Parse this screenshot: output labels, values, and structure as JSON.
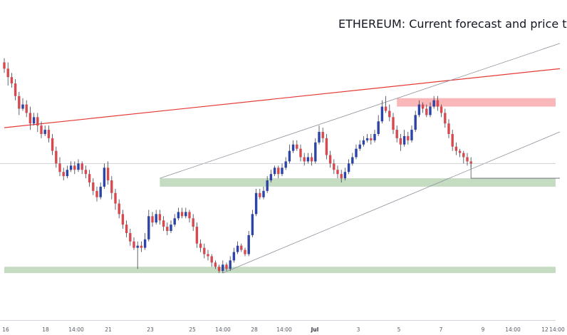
{
  "chart_data": {
    "type": "candlestick",
    "title": "ETHEREUM: Current forecast and price t",
    "x_axis": {
      "tick_labels": [
        "16",
        "18",
        "14:00",
        "21",
        "23",
        "25",
        "14:00",
        "28",
        "14:00",
        "Jul",
        "3",
        "5",
        "7",
        "9",
        "14:00",
        "12",
        "14:00"
      ],
      "bold_labels": [
        "Jul"
      ]
    },
    "y_axis": {
      "tick_labels": []
    },
    "colors": {
      "bull": "#2b44a6",
      "bear": "#d64a4f",
      "wick": "#3a3f4b",
      "support_zone": "#7fb27a",
      "support_zone_alpha": 0.45,
      "resistance_zone": "#f47c80",
      "resistance_zone_alpha": 0.55,
      "trendline": "#e53935",
      "channel": "#8a8f99",
      "current_price_line": "#c4c6cc"
    },
    "ohlc": [
      [
        108,
        105,
        110,
        103
      ],
      [
        105,
        101,
        108,
        97
      ],
      [
        101,
        98,
        103,
        96
      ],
      [
        98,
        92,
        100,
        90
      ],
      [
        92,
        86,
        94,
        83
      ],
      [
        86,
        88,
        91,
        85
      ],
      [
        88,
        84,
        90,
        82
      ],
      [
        84,
        79,
        87,
        76
      ],
      [
        79,
        82,
        84,
        78
      ],
      [
        82,
        78,
        84,
        75
      ],
      [
        78,
        74,
        80,
        72
      ],
      [
        74,
        76,
        78,
        73
      ],
      [
        76,
        72,
        78,
        70
      ],
      [
        72,
        66,
        74,
        64
      ],
      [
        66,
        60,
        68,
        58
      ],
      [
        60,
        56,
        63,
        54
      ],
      [
        56,
        54,
        58,
        52
      ],
      [
        54,
        57,
        59,
        53
      ],
      [
        57,
        59,
        61,
        56
      ],
      [
        59,
        57,
        61,
        55
      ],
      [
        57,
        60,
        62,
        56
      ],
      [
        60,
        57,
        61,
        55
      ],
      [
        57,
        55,
        59,
        53
      ],
      [
        55,
        51,
        57,
        49
      ],
      [
        51,
        47,
        53,
        45
      ],
      [
        47,
        44,
        49,
        42
      ],
      [
        44,
        49,
        51,
        43
      ],
      [
        49,
        58,
        60,
        48
      ],
      [
        58,
        52,
        61,
        50
      ],
      [
        52,
        46,
        54,
        43
      ],
      [
        46,
        41,
        48,
        38
      ],
      [
        41,
        36,
        43,
        34
      ],
      [
        36,
        31,
        38,
        29
      ],
      [
        31,
        27,
        33,
        25
      ],
      [
        27,
        23,
        29,
        21
      ],
      [
        23,
        20,
        25,
        19
      ],
      [
        20,
        21,
        23,
        10
      ],
      [
        21,
        20,
        23,
        18
      ],
      [
        20,
        24,
        27,
        19
      ],
      [
        24,
        35,
        38,
        23
      ],
      [
        35,
        32,
        37,
        30
      ],
      [
        32,
        36,
        38,
        31
      ],
      [
        36,
        33,
        38,
        31
      ],
      [
        33,
        30,
        35,
        28
      ],
      [
        30,
        28,
        32,
        26
      ],
      [
        28,
        31,
        33,
        27
      ],
      [
        31,
        34,
        36,
        30
      ],
      [
        34,
        37,
        39,
        33
      ],
      [
        37,
        35,
        39,
        34
      ],
      [
        35,
        37,
        39,
        34
      ],
      [
        37,
        34,
        38,
        32
      ],
      [
        34,
        30,
        36,
        28
      ],
      [
        30,
        22,
        32,
        20
      ],
      [
        22,
        20,
        24,
        18
      ],
      [
        20,
        17,
        22,
        15
      ],
      [
        17,
        16,
        19,
        14
      ],
      [
        16,
        13,
        17,
        11
      ],
      [
        13,
        11,
        14,
        10
      ],
      [
        11,
        9,
        12,
        8
      ],
      [
        9,
        12,
        14,
        8
      ],
      [
        12,
        10,
        13,
        9
      ],
      [
        10,
        14,
        16,
        9
      ],
      [
        14,
        18,
        20,
        13
      ],
      [
        18,
        21,
        23,
        17
      ],
      [
        21,
        19,
        22,
        18
      ],
      [
        19,
        17,
        20,
        16
      ],
      [
        17,
        26,
        28,
        16
      ],
      [
        26,
        36,
        38,
        25
      ],
      [
        36,
        46,
        48,
        35
      ],
      [
        46,
        44,
        48,
        43
      ],
      [
        44,
        47,
        49,
        43
      ],
      [
        47,
        52,
        54,
        46
      ],
      [
        52,
        55,
        57,
        51
      ],
      [
        55,
        58,
        59,
        54
      ],
      [
        58,
        55,
        59,
        53
      ],
      [
        55,
        58,
        60,
        54
      ],
      [
        58,
        61,
        63,
        57
      ],
      [
        61,
        66,
        69,
        60
      ],
      [
        66,
        69,
        71,
        65
      ],
      [
        69,
        67,
        71,
        66
      ],
      [
        67,
        63,
        69,
        61
      ],
      [
        63,
        61,
        65,
        59
      ],
      [
        61,
        63,
        65,
        60
      ],
      [
        63,
        61,
        65,
        59
      ],
      [
        61,
        70,
        72,
        60
      ],
      [
        70,
        75,
        78,
        69
      ],
      [
        75,
        72,
        77,
        70
      ],
      [
        72,
        64,
        74,
        62
      ],
      [
        64,
        60,
        66,
        58
      ],
      [
        60,
        57,
        62,
        55
      ],
      [
        57,
        55,
        59,
        53
      ],
      [
        55,
        53,
        57,
        51
      ],
      [
        53,
        56,
        58,
        52
      ],
      [
        56,
        60,
        62,
        55
      ],
      [
        60,
        63,
        65,
        59
      ],
      [
        63,
        67,
        69,
        62
      ],
      [
        67,
        69,
        71,
        66
      ],
      [
        69,
        71,
        73,
        68
      ],
      [
        71,
        72,
        74,
        70
      ],
      [
        72,
        71,
        74,
        69
      ],
      [
        71,
        74,
        76,
        70
      ],
      [
        74,
        80,
        83,
        73
      ],
      [
        80,
        87,
        90,
        79
      ],
      [
        87,
        85,
        92,
        84
      ],
      [
        85,
        82,
        88,
        80
      ],
      [
        82,
        76,
        84,
        74
      ],
      [
        76,
        72,
        78,
        70
      ],
      [
        72,
        69,
        74,
        66
      ],
      [
        69,
        73,
        76,
        68
      ],
      [
        73,
        71,
        75,
        69
      ],
      [
        71,
        76,
        78,
        70
      ],
      [
        76,
        83,
        85,
        75
      ],
      [
        83,
        88,
        90,
        82
      ],
      [
        88,
        86,
        89,
        84
      ],
      [
        86,
        83,
        88,
        82
      ],
      [
        83,
        87,
        89,
        82
      ],
      [
        87,
        90,
        92,
        86
      ],
      [
        90,
        87,
        92,
        85
      ],
      [
        87,
        84,
        88,
        82
      ],
      [
        84,
        79,
        86,
        77
      ],
      [
        79,
        74,
        81,
        72
      ],
      [
        74,
        68,
        76,
        66
      ],
      [
        68,
        66,
        70,
        64
      ],
      [
        66,
        65,
        67,
        63
      ],
      [
        65,
        63,
        66,
        60
      ],
      [
        63,
        61,
        65,
        59
      ],
      [
        61,
        60,
        63,
        58
      ]
    ],
    "annotations": [
      {
        "type": "zone",
        "label": "resistance",
        "y_range": [
          87,
          91
        ],
        "x_from": 106
      },
      {
        "type": "zone",
        "label": "support",
        "y_range": [
          49,
          53
        ],
        "x_from": 42
      },
      {
        "type": "zone",
        "label": "support",
        "y_range": [
          8,
          11
        ],
        "x_from": 0
      },
      {
        "type": "trendline",
        "from": [
          0,
          77
        ],
        "to": [
          150,
          105
        ]
      },
      {
        "type": "channel_line",
        "from": [
          42,
          53
        ],
        "to": [
          150,
          117
        ]
      },
      {
        "type": "channel_line",
        "from": [
          59,
          8
        ],
        "to": [
          150,
          75
        ]
      },
      {
        "type": "price_line",
        "y": 60
      },
      {
        "type": "projection",
        "points": [
          [
            126,
            60
          ],
          [
            126,
            53
          ],
          [
            150,
            53
          ]
        ]
      }
    ],
    "grid": false,
    "legend": "none"
  }
}
